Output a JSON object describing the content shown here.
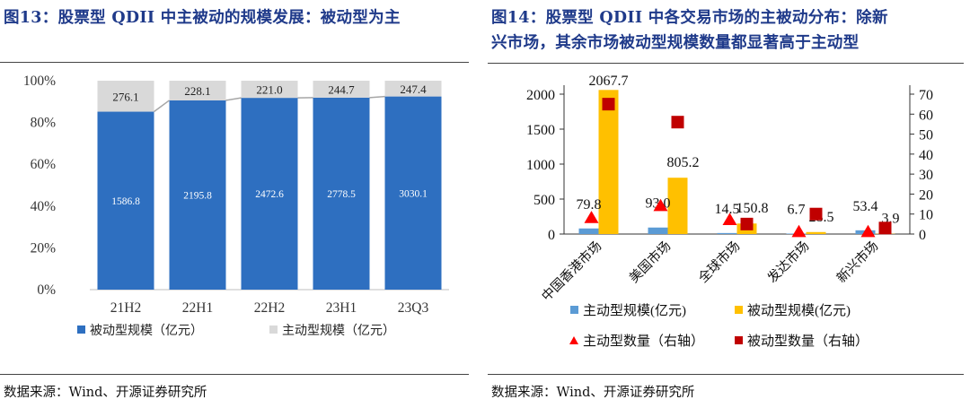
{
  "left": {
    "title_no": "图13：",
    "title": "股票型 QDII 中主被动的规模发展：被动型为主",
    "source": "数据来源：Wind、开源证券研究所",
    "chart_data": {
      "type": "bar",
      "stacked": "percent",
      "categories": [
        "21H2",
        "22H1",
        "22H2",
        "23H1",
        "23Q3"
      ],
      "series": [
        {
          "name": "被动型规模（亿元）",
          "values": [
            1586.8,
            2195.8,
            2472.6,
            2778.5,
            3030.1
          ],
          "color": "#2e6fc0"
        },
        {
          "name": "主动型规模（亿元）",
          "values": [
            276.1,
            228.1,
            221.0,
            244.7,
            247.4
          ],
          "color": "#d9d9d9"
        }
      ],
      "value_labels_passive": [
        "1586.8",
        "2195.8",
        "2472.6",
        "2778.5",
        "3030.1"
      ],
      "value_labels_active": [
        "276.1",
        "228.1",
        "221.0",
        "244.7",
        "247.4"
      ],
      "yticks": [
        "0%",
        "20%",
        "40%",
        "60%",
        "80%",
        "100%"
      ],
      "ylim": [
        0,
        1
      ],
      "legend_position": "bottom",
      "series_connector_color": "#a6a6a6"
    }
  },
  "right": {
    "title_no": "图14：",
    "title_line1": "股票型 QDII 中各交易市场的主被动分布：除新",
    "title_line2": "兴市场，其余市场被动型规模数量都显著高于主动型",
    "source": "数据来源：Wind、开源证券研究所",
    "chart_data": {
      "type": "bar",
      "categories": [
        "中国香港市场",
        "美国市场",
        "全球市场",
        "发达市场",
        "新兴市场"
      ],
      "series": [
        {
          "name": "主动型规模(亿元)",
          "values": [
            79.8,
            93.0,
            14.5,
            6.7,
            53.4
          ],
          "color": "#5b9bd5",
          "axis": "left"
        },
        {
          "name": "被动型规模(亿元)",
          "values": [
            2067.7,
            805.2,
            150.8,
            28.5,
            3.9
          ],
          "color": "#ffc000",
          "axis": "left"
        },
        {
          "name": "主动型数量（右轴）",
          "values": [
            8,
            14,
            7,
            1,
            1
          ],
          "color": "#ff0000",
          "axis": "right",
          "marker": "triangle"
        },
        {
          "name": "被动型数量（右轴）",
          "values": [
            65,
            56,
            5,
            10,
            3
          ],
          "color": "#c00000",
          "axis": "right",
          "marker": "square"
        }
      ],
      "labels_active": [
        "79.8",
        "93.0",
        "14.5",
        "6.7",
        "53.4"
      ],
      "labels_passive": [
        "2067.7",
        "805.2",
        "150.8",
        "28.5",
        "3.9"
      ],
      "yticks_left": [
        "0",
        "500",
        "1000",
        "1500",
        "2000"
      ],
      "ylim_left": [
        0,
        2000
      ],
      "yticks_right": [
        "0",
        "10",
        "20",
        "30",
        "40",
        "50",
        "60",
        "70"
      ],
      "ylim_right": [
        0,
        70
      ],
      "legend_position": "bottom"
    }
  }
}
